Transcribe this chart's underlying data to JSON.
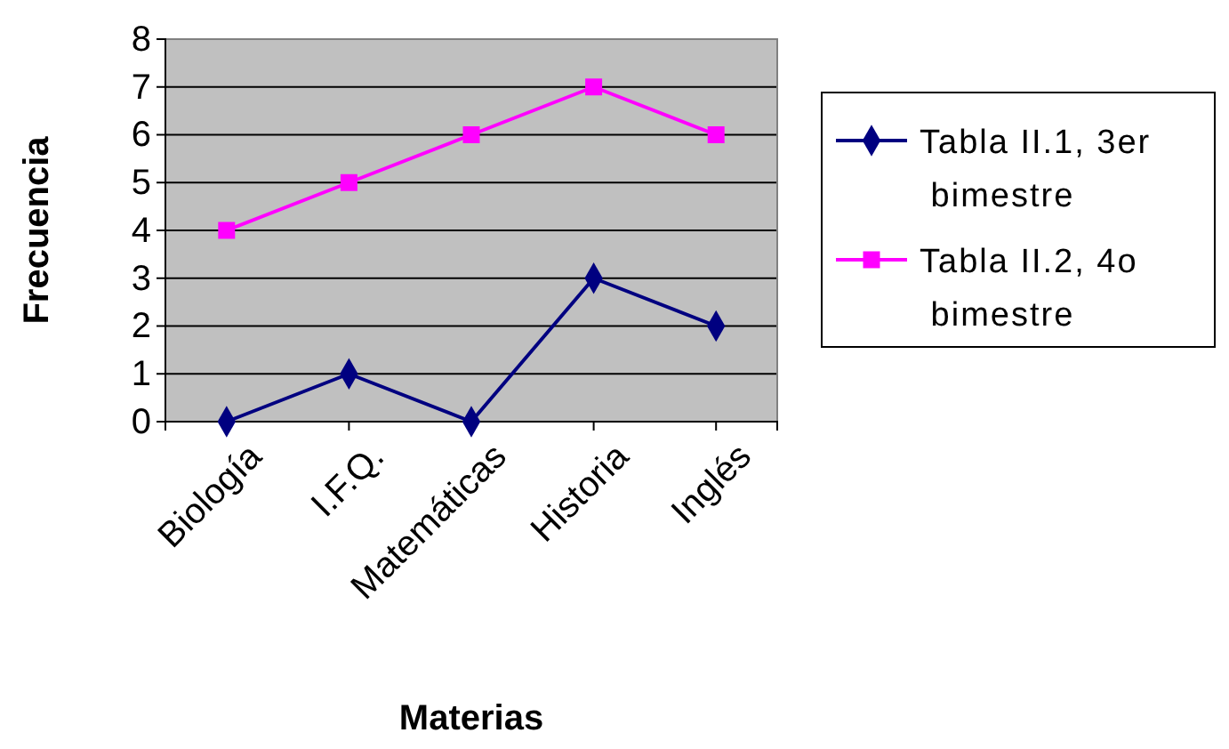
{
  "chart_data": {
    "type": "line",
    "xlabel": "Materias",
    "ylabel": "Frecuencia",
    "categories": [
      "Biología",
      "I.F.Q.",
      "Matemáticas",
      "Historia",
      "Inglés"
    ],
    "series": [
      {
        "name": "Tabla II.1, 3er bimestre",
        "color": "#000080",
        "marker": "diamond",
        "values": [
          0,
          1,
          0,
          3,
          2
        ]
      },
      {
        "name": "Tabla II.2, 4o bimestre",
        "color": "#ff00ff",
        "marker": "square",
        "values": [
          4,
          5,
          6,
          7,
          6
        ]
      }
    ],
    "ylim": [
      0,
      8
    ],
    "yticks": [
      0,
      1,
      2,
      3,
      4,
      5,
      6,
      7,
      8
    ],
    "grid": "y",
    "legend": "right",
    "line_style": "solid"
  }
}
